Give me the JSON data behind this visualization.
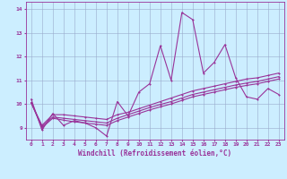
{
  "xlabel": "Windchill (Refroidissement éolien,°C)",
  "bg_color": "#cceeff",
  "line_color": "#993399",
  "grid_color": "#99aacc",
  "xlim": [
    -0.5,
    23.5
  ],
  "ylim": [
    8.5,
    14.3
  ],
  "xticks": [
    0,
    1,
    2,
    3,
    4,
    5,
    6,
    7,
    8,
    9,
    10,
    11,
    12,
    13,
    14,
    15,
    16,
    17,
    18,
    19,
    20,
    21,
    22,
    23
  ],
  "yticks": [
    9,
    10,
    11,
    12,
    13,
    14
  ],
  "line_volatile_x": [
    0,
    1,
    2,
    3,
    4,
    5,
    6,
    7,
    8,
    9,
    10,
    11,
    12,
    13,
    14,
    15,
    16,
    17,
    18,
    19,
    20,
    21,
    22,
    23
  ],
  "line_volatile_y": [
    10.2,
    8.9,
    9.6,
    9.1,
    9.3,
    9.2,
    9.0,
    8.65,
    10.1,
    9.5,
    10.5,
    10.85,
    12.45,
    11.0,
    13.85,
    13.55,
    11.3,
    11.75,
    12.5,
    11.1,
    10.3,
    10.2,
    10.65,
    10.4
  ],
  "line_smooth1_x": [
    0,
    1,
    2,
    3,
    4,
    5,
    6,
    7,
    8,
    9,
    10,
    11,
    12,
    13,
    14,
    15,
    16,
    17,
    18,
    19,
    20,
    21,
    22,
    23
  ],
  "line_smooth1_y": [
    10.05,
    9.1,
    9.55,
    9.55,
    9.5,
    9.45,
    9.4,
    9.35,
    9.55,
    9.65,
    9.8,
    9.95,
    10.1,
    10.25,
    10.4,
    10.55,
    10.65,
    10.75,
    10.85,
    10.95,
    11.05,
    11.1,
    11.2,
    11.3
  ],
  "line_smooth2_x": [
    0,
    1,
    2,
    3,
    4,
    5,
    6,
    7,
    8,
    9,
    10,
    11,
    12,
    13,
    14,
    15,
    16,
    17,
    18,
    19,
    20,
    21,
    22,
    23
  ],
  "line_smooth2_y": [
    10.05,
    9.05,
    9.45,
    9.4,
    9.35,
    9.3,
    9.25,
    9.2,
    9.4,
    9.55,
    9.7,
    9.85,
    9.98,
    10.1,
    10.25,
    10.4,
    10.5,
    10.6,
    10.7,
    10.8,
    10.88,
    10.95,
    11.05,
    11.15
  ],
  "line_smooth3_x": [
    0,
    1,
    2,
    3,
    4,
    5,
    6,
    7,
    8,
    9,
    10,
    11,
    12,
    13,
    14,
    15,
    16,
    17,
    18,
    19,
    20,
    21,
    22,
    23
  ],
  "line_smooth3_y": [
    10.05,
    9.0,
    9.4,
    9.32,
    9.25,
    9.2,
    9.15,
    9.1,
    9.3,
    9.45,
    9.6,
    9.75,
    9.88,
    10.0,
    10.15,
    10.3,
    10.4,
    10.5,
    10.6,
    10.7,
    10.78,
    10.85,
    10.95,
    11.05
  ],
  "marker": "P",
  "markersize": 2.0,
  "linewidth": 0.8,
  "tick_fontsize": 4.5,
  "label_fontsize": 5.5
}
